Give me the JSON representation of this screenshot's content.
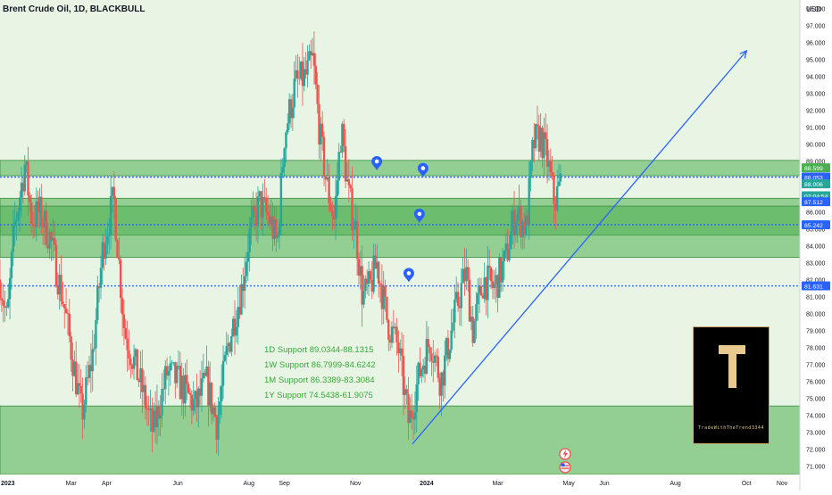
{
  "header": {
    "title": "Brent Crude Oil, 1D, BLACKBULL",
    "currency": "USD"
  },
  "colors": {
    "background": "#e8f5e4",
    "zone_fill": "#4caf50",
    "bull": "#26a69a",
    "bear": "#ef5350",
    "blue": "#2962ff",
    "support_text": "#3aa83a"
  },
  "support_levels": [
    "1D Support 89.0344-88.1315",
    "1W Support 86.7999-84.6242",
    "1M Support 86.3389-83.3084",
    "1Y Support 74.5438-61.9075"
  ],
  "price_badges": [
    {
      "label": "88.599",
      "price": 88.6,
      "color": "#4caf50"
    },
    {
      "label": "88.053",
      "price": 88.05,
      "color": "#2962ff"
    },
    {
      "label": "88.006",
      "price": 87.65,
      "color": "#26a69a"
    },
    {
      "label": "02:04:54",
      "price": 86.95,
      "color": "#26a69a"
    },
    {
      "label": "87.512",
      "price": 86.6,
      "color": "#2962ff"
    },
    {
      "label": "85.242",
      "price": 85.24,
      "color": "#2962ff"
    },
    {
      "label": "81.631",
      "price": 81.63,
      "color": "#2962ff"
    }
  ],
  "logo": {
    "letter": "T",
    "caption": "TradeWithTheTrend3344"
  },
  "chart_data": {
    "type": "candlestick",
    "y_axis_range": [
      70.5,
      98.5
    ],
    "y_ticks": [
      71,
      72,
      73,
      74,
      75,
      76,
      77,
      78,
      79,
      80,
      81,
      82,
      83,
      84,
      85,
      86,
      87,
      88,
      89,
      90,
      91,
      92,
      93,
      94,
      95,
      96,
      97,
      98
    ],
    "y_tick_labels": [
      "71.000",
      "72.000",
      "73.000",
      "74.000",
      "75.000",
      "76.000",
      "77.000",
      "78.000",
      "79.000",
      "80.000",
      "81.000",
      "82.000",
      "83.000",
      "84.000",
      "85.000",
      "86.000",
      "87.000",
      "88.000",
      "89.000",
      "90.000",
      "91.000",
      "92.000",
      "93.000",
      "94.000",
      "95.000",
      "96.000",
      "97.000",
      "98.000"
    ],
    "x_tick_labels": [
      "2023",
      "Mar",
      "Apr",
      "Jun",
      "Aug",
      "Sep",
      "Nov",
      "2024",
      "Mar",
      "May",
      "Jun",
      "Aug",
      "Oct",
      "Nov"
    ],
    "x_tick_months": [
      0,
      2,
      3,
      5,
      7,
      8,
      10,
      12,
      14,
      16,
      17,
      19,
      21,
      22
    ],
    "x_range_months": [
      0,
      22.5
    ],
    "price_anchors": [
      [
        0.0,
        82.0
      ],
      [
        0.2,
        79.5
      ],
      [
        0.4,
        85.0
      ],
      [
        0.7,
        88.8
      ],
      [
        0.9,
        85.5
      ],
      [
        1.1,
        86.0
      ],
      [
        1.4,
        84.5
      ],
      [
        1.8,
        80.5
      ],
      [
        2.3,
        74.0
      ],
      [
        2.6,
        77.5
      ],
      [
        2.9,
        84.0
      ],
      [
        3.2,
        86.8
      ],
      [
        3.5,
        79.0
      ],
      [
        4.0,
        75.5
      ],
      [
        4.3,
        73.0
      ],
      [
        4.7,
        76.5
      ],
      [
        5.0,
        76.0
      ],
      [
        5.5,
        74.5
      ],
      [
        5.8,
        76.0
      ],
      [
        6.1,
        73.5
      ],
      [
        6.4,
        78.0
      ],
      [
        6.8,
        81.5
      ],
      [
        7.0,
        84.5
      ],
      [
        7.3,
        86.5
      ],
      [
        7.6,
        85.5
      ],
      [
        7.8,
        84.0
      ],
      [
        8.0,
        90.5
      ],
      [
        8.3,
        93.5
      ],
      [
        8.6,
        94.0
      ],
      [
        8.8,
        95.0
      ],
      [
        9.0,
        90.5
      ],
      [
        9.2,
        87.5
      ],
      [
        9.4,
        85.5
      ],
      [
        9.6,
        91.0
      ],
      [
        9.8,
        87.0
      ],
      [
        10.0,
        85.0
      ],
      [
        10.2,
        81.0
      ],
      [
        10.4,
        81.5
      ],
      [
        10.6,
        83.0
      ],
      [
        10.9,
        79.5
      ],
      [
        11.2,
        78.0
      ],
      [
        11.5,
        73.5
      ],
      [
        11.8,
        76.5
      ],
      [
        12.1,
        78.5
      ],
      [
        12.4,
        76.0
      ],
      [
        12.8,
        80.0
      ],
      [
        13.1,
        82.5
      ],
      [
        13.3,
        79.0
      ],
      [
        13.6,
        82.0
      ],
      [
        13.9,
        81.5
      ],
      [
        14.2,
        83.0
      ],
      [
        14.5,
        86.0
      ],
      [
        14.8,
        85.0
      ],
      [
        15.0,
        90.0
      ],
      [
        15.2,
        90.5
      ],
      [
        15.4,
        89.0
      ],
      [
        15.6,
        86.5
      ],
      [
        15.8,
        88.0
      ]
    ],
    "zones": [
      {
        "name": "1D Support",
        "low": 88.1315,
        "high": 89.0344
      },
      {
        "name": "1W Support",
        "low": 84.6242,
        "high": 86.7999
      },
      {
        "name": "1M Support",
        "low": 83.3084,
        "high": 86.3389
      },
      {
        "name": "1Y Support",
        "low": 61.9075,
        "high": 74.5438
      }
    ],
    "levels": [
      88.05,
      85.24,
      81.63
    ],
    "trendline": {
      "from": [
        11.6,
        72.3
      ],
      "to": [
        21.0,
        95.5
      ]
    },
    "markers": [
      {
        "month": 10.6,
        "price": 88.5
      },
      {
        "month": 11.9,
        "price": 88.1
      },
      {
        "month": 11.8,
        "price": 85.4
      },
      {
        "month": 11.5,
        "price": 81.9
      }
    ]
  }
}
